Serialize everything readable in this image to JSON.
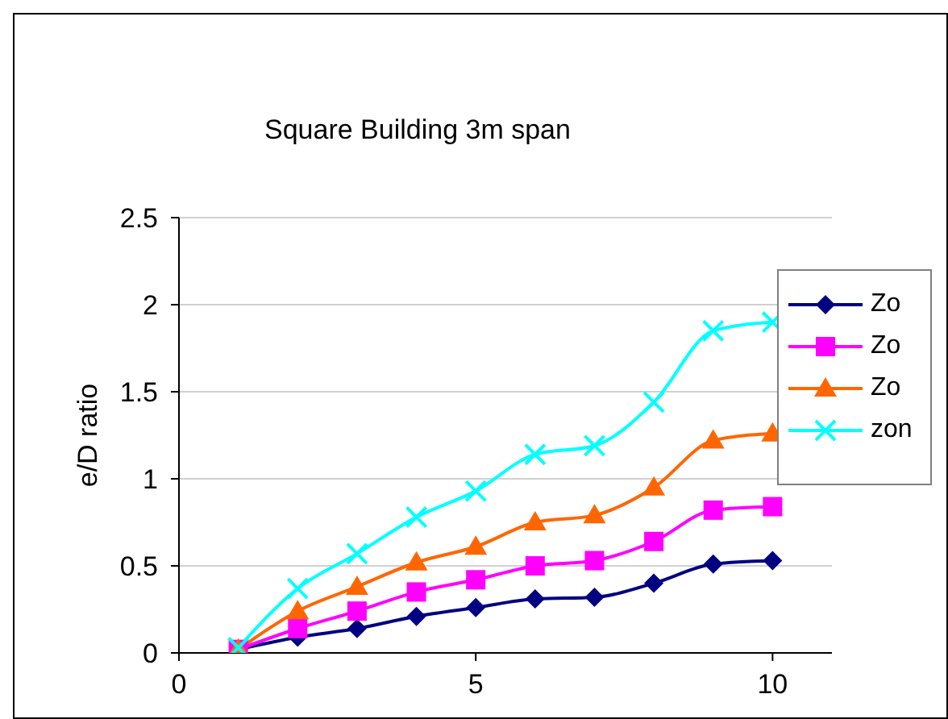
{
  "chart_data": {
    "type": "line",
    "title": "Square Building 3m span",
    "ylabel": "e/D ratio",
    "x": [
      1,
      2,
      3,
      4,
      5,
      6,
      7,
      8,
      9,
      10
    ],
    "series": [
      {
        "name": "Zo",
        "color": "#000080",
        "marker": "diamond",
        "values": [
          0.02,
          0.09,
          0.14,
          0.21,
          0.26,
          0.31,
          0.32,
          0.4,
          0.51,
          0.53
        ]
      },
      {
        "name": "Zo",
        "color": "#ff00ff",
        "marker": "square",
        "values": [
          0.02,
          0.14,
          0.24,
          0.35,
          0.42,
          0.5,
          0.53,
          0.64,
          0.82,
          0.84
        ]
      },
      {
        "name": "Zo",
        "color": "#ff6600",
        "marker": "triangle",
        "values": [
          0.02,
          0.24,
          0.38,
          0.52,
          0.61,
          0.75,
          0.79,
          0.95,
          1.22,
          1.26
        ]
      },
      {
        "name": "zon",
        "color": "#00ffff",
        "marker": "cross",
        "values": [
          0.03,
          0.37,
          0.57,
          0.78,
          0.93,
          1.14,
          1.19,
          1.44,
          1.85,
          1.9
        ]
      }
    ],
    "xlim": [
      0,
      11
    ],
    "xticks": [
      0,
      5,
      10
    ],
    "ylim": [
      0,
      2.5
    ],
    "yticks": [
      0,
      0.5,
      1,
      1.5,
      2,
      2.5
    ],
    "grid": "y",
    "legend": "right"
  }
}
